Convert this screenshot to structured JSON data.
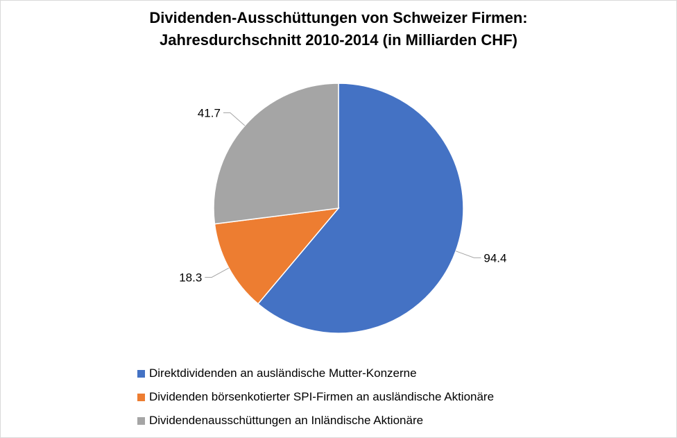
{
  "chart_data": {
    "type": "pie",
    "title": "Dividenden-Ausschüttungen von Schweizer Firmen: Jahresdurchschnitt 2010-2014 (in Milliarden CHF)",
    "title_lines": [
      "Dividenden-Ausschüttungen von Schweizer Firmen:",
      "Jahresdurchschnitt 2010-2014 (in Milliarden CHF)"
    ],
    "legend_position": "bottom",
    "slices": [
      {
        "label": "Direktdividenden an ausländische Mutter-Konzerne",
        "value": 94.4,
        "value_label": "94.4",
        "color": "#4472C4"
      },
      {
        "label": "Dividenden börsenkotierter SPI-Firmen an ausländische Aktionäre",
        "value": 18.3,
        "value_label": "18.3",
        "color": "#ED7D31"
      },
      {
        "label": "Dividendenausschüttungen an Inländische Aktionäre",
        "value": 41.7,
        "value_label": "41.7",
        "color": "#A5A5A5"
      }
    ]
  }
}
